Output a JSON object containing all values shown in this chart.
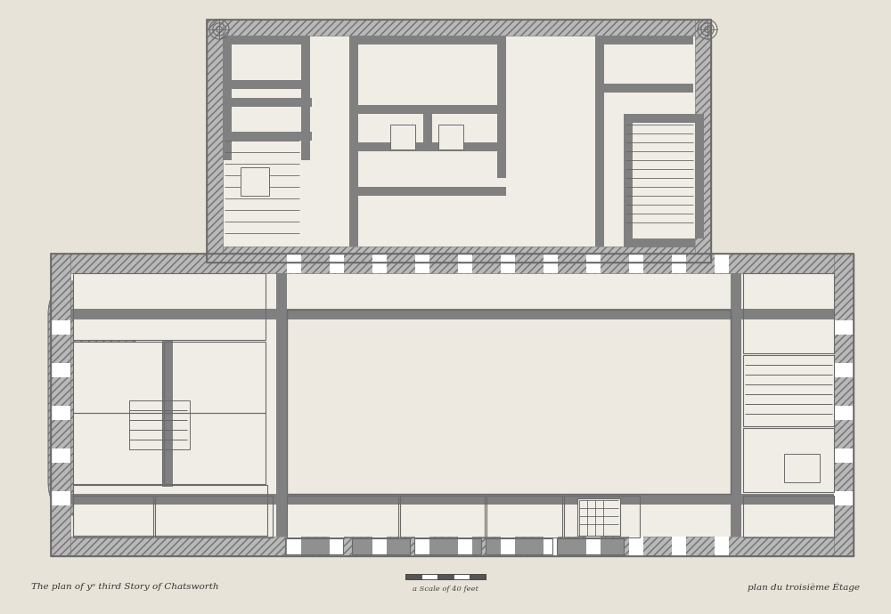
{
  "background_color": "#e8e3d8",
  "wall_fill": "#a0a0a0",
  "wall_dark": "#6a6a6a",
  "wall_light": "#c8c8c8",
  "line_color": "#555555",
  "hatch_color": "#888888",
  "interior_color": "#f0ede6",
  "court_color": "#ede9e0",
  "title_left": "The plan of yᵉ third Story of Chatsworth",
  "title_right": "plan du troisième Étage",
  "scale_text": "a Scale of 40 feet",
  "fig_width": 10.0,
  "fig_height": 6.9,
  "dpi": 100
}
